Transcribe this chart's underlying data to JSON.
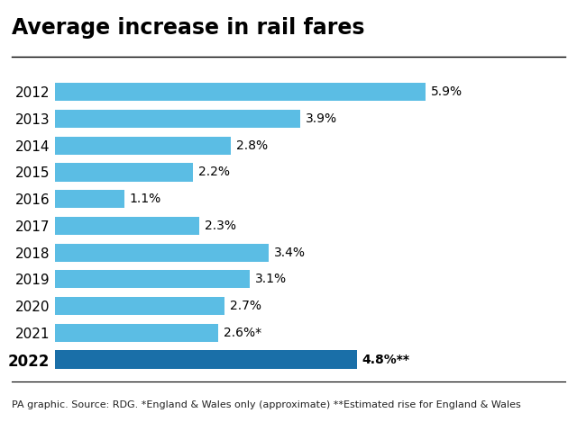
{
  "title": "Average increase in rail fares",
  "years": [
    "2012",
    "2013",
    "2014",
    "2015",
    "2016",
    "2017",
    "2018",
    "2019",
    "2020",
    "2021",
    "2022"
  ],
  "values": [
    5.9,
    3.9,
    2.8,
    2.2,
    1.1,
    2.3,
    3.4,
    3.1,
    2.7,
    2.6,
    4.8
  ],
  "labels": [
    "5.9%",
    "3.9%",
    "2.8%",
    "2.2%",
    "1.1%",
    "2.3%",
    "3.4%",
    "3.1%",
    "2.7%",
    "2.6%*",
    "4.8%**"
  ],
  "bar_colors": [
    "#5bbde4",
    "#5bbde4",
    "#5bbde4",
    "#5bbde4",
    "#5bbde4",
    "#5bbde4",
    "#5bbde4",
    "#5bbde4",
    "#5bbde4",
    "#5bbde4",
    "#1a6fa8"
  ],
  "xlim": [
    0,
    7.2
  ],
  "background_color": "#ffffff",
  "footer": "PA graphic. Source: RDG. *England & Wales only (approximate) **Estimated rise for England & Wales",
  "title_fontsize": 17,
  "label_fontsize": 10,
  "year_fontsize": 11,
  "footer_fontsize": 8,
  "bar_height": 0.68
}
